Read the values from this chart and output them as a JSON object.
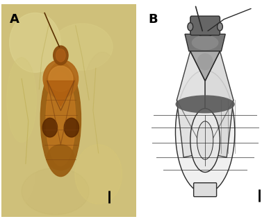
{
  "figure_width": 4.0,
  "figure_height": 3.16,
  "dpi": 100,
  "border_color": "#444444",
  "panel_A_label": "A",
  "panel_B_label": "B",
  "label_fontsize": 13,
  "label_fontweight": "bold",
  "bg_color_A": "#d8c880",
  "bg_color_B": "#ffffff",
  "scale_bar_color": "#000000",
  "fossil_body_color": "#a06820",
  "fossil_dark": "#6b3a08",
  "fossil_mid": "#c88830",
  "stone_light": "#e0d090",
  "stone_mid": "#ccc070",
  "stone_vein": "#b8a858"
}
